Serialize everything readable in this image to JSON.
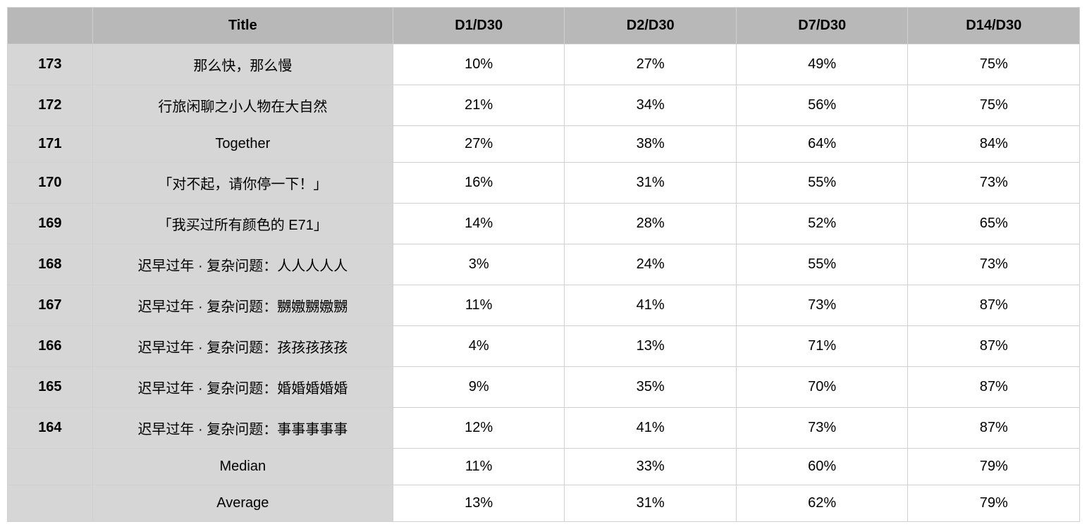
{
  "table": {
    "type": "table",
    "background_color": "#ffffff",
    "header_bg": "#b8b8b8",
    "rowheader_bg": "#d6d6d6",
    "border_color": "#d0d0d0",
    "font_family": "-apple-system, Helvetica, Arial, sans-serif",
    "header_fontweight": 700,
    "body_fontsize": 20,
    "columns": [
      {
        "key": "id",
        "label": "",
        "width_pct": 8,
        "align": "center",
        "is_rowheader": true
      },
      {
        "key": "title",
        "label": "Title",
        "width_pct": 28,
        "align": "center",
        "is_rowheader": true
      },
      {
        "key": "d1",
        "label": "D1/D30",
        "width_pct": 16,
        "align": "center"
      },
      {
        "key": "d2",
        "label": "D2/D30",
        "width_pct": 16,
        "align": "center"
      },
      {
        "key": "d7",
        "label": "D7/D30",
        "width_pct": 16,
        "align": "center"
      },
      {
        "key": "d14",
        "label": "D14/D30",
        "width_pct": 16,
        "align": "center"
      }
    ],
    "rows": [
      {
        "id": "173",
        "title": "那么快，那么慢",
        "d1": "10%",
        "d2": "27%",
        "d7": "49%",
        "d14": "75%"
      },
      {
        "id": "172",
        "title": "行旅闲聊之小人物在大自然",
        "d1": "21%",
        "d2": "34%",
        "d7": "56%",
        "d14": "75%"
      },
      {
        "id": "171",
        "title": "Together",
        "d1": "27%",
        "d2": "38%",
        "d7": "64%",
        "d14": "84%"
      },
      {
        "id": "170",
        "title": "「对不起，请你停一下！」",
        "d1": "16%",
        "d2": "31%",
        "d7": "55%",
        "d14": "73%"
      },
      {
        "id": "169",
        "title": "「我买过所有颜色的 E71」",
        "d1": "14%",
        "d2": "28%",
        "d7": "52%",
        "d14": "65%"
      },
      {
        "id": "168",
        "title": "迟早过年 · 复杂问题：人人人人人",
        "d1": "3%",
        "d2": "24%",
        "d7": "55%",
        "d14": "73%"
      },
      {
        "id": "167",
        "title": "迟早过年 · 复杂问题：嬲嫐嬲嫐嬲",
        "d1": "11%",
        "d2": "41%",
        "d7": "73%",
        "d14": "87%"
      },
      {
        "id": "166",
        "title": "迟早过年 · 复杂问题：孩孩孩孩孩",
        "d1": "4%",
        "d2": "13%",
        "d7": "71%",
        "d14": "87%"
      },
      {
        "id": "165",
        "title": "迟早过年 · 复杂问题：婚婚婚婚婚",
        "d1": "9%",
        "d2": "35%",
        "d7": "70%",
        "d14": "87%"
      },
      {
        "id": "164",
        "title": "迟早过年 · 复杂问题：事事事事事",
        "d1": "12%",
        "d2": "41%",
        "d7": "73%",
        "d14": "87%"
      }
    ],
    "summary": [
      {
        "id": "",
        "title": "Median",
        "d1": "11%",
        "d2": "33%",
        "d7": "60%",
        "d14": "79%"
      },
      {
        "id": "",
        "title": "Average",
        "d1": "13%",
        "d2": "31%",
        "d7": "62%",
        "d14": "79%"
      }
    ]
  }
}
